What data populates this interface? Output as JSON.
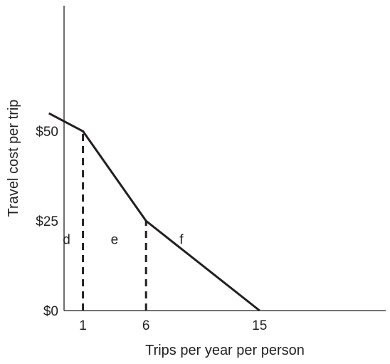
{
  "chart_data": {
    "type": "line",
    "title": "",
    "xlabel": "Trips per year per person",
    "ylabel": "Travel cost per trip",
    "xlim": [
      -0.5,
      25
    ],
    "ylim": [
      0,
      85
    ],
    "grid": false,
    "legend": "none",
    "x_ticks": [
      {
        "value": 1,
        "label": "1"
      },
      {
        "value": 6,
        "label": "6"
      },
      {
        "value": 15,
        "label": "15"
      }
    ],
    "y_ticks": [
      {
        "value": 0,
        "label": "$0"
      },
      {
        "value": 25,
        "label": "$25"
      },
      {
        "value": 50,
        "label": "$50"
      }
    ],
    "series": [
      {
        "x": [
          -1.7,
          1,
          6,
          15
        ],
        "y": [
          55,
          50,
          25,
          0
        ]
      }
    ],
    "reference_lines": [
      {
        "x": 1,
        "y_from": 0,
        "y_to": 50,
        "style": "dashed"
      },
      {
        "x": 6,
        "y_from": 0,
        "y_to": 25,
        "style": "dashed"
      }
    ],
    "region_labels": [
      {
        "text": "d",
        "x": -0.3,
        "y": 20
      },
      {
        "text": "e",
        "x": 3.5,
        "y": 20
      },
      {
        "text": "f",
        "x": 8.8,
        "y": 20
      }
    ],
    "colors": {
      "line": "#231f20",
      "axis": "#231f20"
    }
  }
}
